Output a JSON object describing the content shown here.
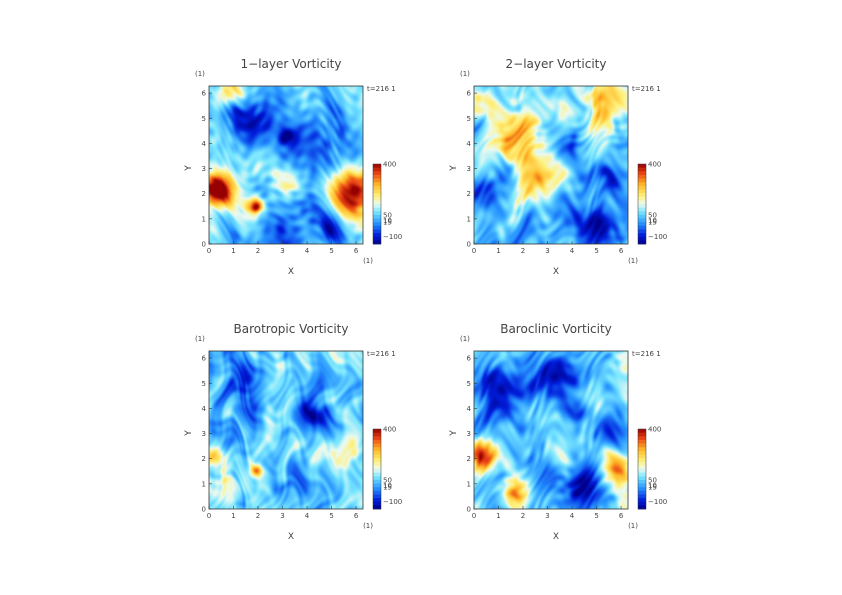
{
  "chart_data": [
    {
      "type": "heatmap",
      "title": "1−layer Vorticity",
      "xlabel": "X",
      "ylabel": "Y",
      "x_unit": "(1)",
      "y_unit": "(1)",
      "xticks": [
        "0",
        "1",
        "2",
        "3",
        "4",
        "5",
        "6"
      ],
      "yticks": [
        "0",
        "1",
        "2",
        "3",
        "4",
        "5",
        "6"
      ],
      "xlim": [
        0,
        6.283
      ],
      "ylim": [
        0,
        6.283
      ],
      "time_label": "t=216 1",
      "colorbar_labels": [
        "400",
        "50",
        "10",
        "15",
        "−100"
      ],
      "colorbar_range": [
        -150,
        400
      ],
      "features": [
        {
          "x": 0.3,
          "y": 2.1,
          "r": 0.7,
          "v": 300
        },
        {
          "x": 1.9,
          "y": 1.5,
          "r": 0.3,
          "v": 250
        },
        {
          "x": 5.8,
          "y": 2.0,
          "r": 0.9,
          "v": 250
        },
        {
          "x": 3.2,
          "y": 4.3,
          "r": 0.35,
          "v": -120
        },
        {
          "x": 1.5,
          "y": 5.1,
          "r": 1.0,
          "v": -100
        },
        {
          "x": 4.4,
          "y": 3.8,
          "r": 1.2,
          "v": -90
        },
        {
          "x": 2.8,
          "y": 0.5,
          "r": 0.9,
          "v": -100
        },
        {
          "x": 4.8,
          "y": 0.6,
          "r": 0.7,
          "v": -100
        },
        {
          "x": 0.8,
          "y": 6.0,
          "r": 0.6,
          "v": 150
        },
        {
          "x": 3.0,
          "y": 2.3,
          "r": 0.7,
          "v": 90
        }
      ]
    },
    {
      "type": "heatmap",
      "title": "2−layer Vorticity",
      "xlabel": "X",
      "ylabel": "Y",
      "x_unit": "(1)",
      "y_unit": "(1)",
      "xticks": [
        "0",
        "1",
        "2",
        "3",
        "4",
        "5",
        "6"
      ],
      "yticks": [
        "0",
        "1",
        "2",
        "3",
        "4",
        "5",
        "6"
      ],
      "xlim": [
        0,
        6.283
      ],
      "ylim": [
        0,
        6.283
      ],
      "time_label": "t=216 1",
      "colorbar_labels": [
        "400",
        "50",
        "10",
        "15",
        "−100"
      ],
      "colorbar_range": [
        -150,
        400
      ],
      "features": [
        {
          "x": 0.6,
          "y": 2.2,
          "r": 0.8,
          "v": -90
        },
        {
          "x": 4.0,
          "y": 4.0,
          "r": 0.7,
          "v": -110
        },
        {
          "x": 5.0,
          "y": 0.8,
          "r": 0.9,
          "v": -100
        },
        {
          "x": 1.5,
          "y": 4.5,
          "r": 1.1,
          "v": 110
        },
        {
          "x": 5.3,
          "y": 5.6,
          "r": 0.8,
          "v": 120
        },
        {
          "x": 2.5,
          "y": 2.6,
          "r": 0.8,
          "v": 120
        },
        {
          "x": 0.4,
          "y": 5.6,
          "r": 0.6,
          "v": 90
        },
        {
          "x": 5.6,
          "y": 2.8,
          "r": 0.8,
          "v": -60
        }
      ]
    },
    {
      "type": "heatmap",
      "title": "Barotropic Vorticity",
      "xlabel": "X",
      "ylabel": "Y",
      "x_unit": "(1)",
      "y_unit": "(1)",
      "xticks": [
        "0",
        "1",
        "2",
        "3",
        "4",
        "5",
        "6"
      ],
      "yticks": [
        "0",
        "1",
        "2",
        "3",
        "4",
        "5",
        "6"
      ],
      "xlim": [
        0,
        6.283
      ],
      "ylim": [
        0,
        6.283
      ],
      "time_label": "t=216 1",
      "colorbar_labels": [
        "400",
        "50",
        "10",
        "15",
        "−100"
      ],
      "colorbar_range": [
        -150,
        400
      ],
      "features": [
        {
          "x": 0.25,
          "y": 2.1,
          "r": 0.4,
          "v": 180
        },
        {
          "x": 1.9,
          "y": 1.5,
          "r": 0.25,
          "v": 150
        },
        {
          "x": 4.2,
          "y": 3.8,
          "r": 0.6,
          "v": -110
        },
        {
          "x": 1.4,
          "y": 4.8,
          "r": 1.0,
          "v": -60
        },
        {
          "x": 3.0,
          "y": 0.7,
          "r": 0.8,
          "v": -60
        },
        {
          "x": 5.5,
          "y": 2.4,
          "r": 0.8,
          "v": 70
        },
        {
          "x": 0.8,
          "y": 0.8,
          "r": 0.7,
          "v": 70
        }
      ]
    },
    {
      "type": "heatmap",
      "title": "Baroclinic Vorticity",
      "xlabel": "X",
      "ylabel": "Y",
      "x_unit": "(1)",
      "y_unit": "(1)",
      "xticks": [
        "0",
        "1",
        "2",
        "3",
        "4",
        "5",
        "6"
      ],
      "yticks": [
        "0",
        "1",
        "2",
        "3",
        "4",
        "5",
        "6"
      ],
      "xlim": [
        0,
        6.283
      ],
      "ylim": [
        0,
        6.283
      ],
      "time_label": "t=216 1",
      "colorbar_labels": [
        "400",
        "50",
        "10",
        "15",
        "−100"
      ],
      "colorbar_range": [
        -150,
        400
      ],
      "features": [
        {
          "x": 0.25,
          "y": 2.1,
          "r": 0.6,
          "v": 250
        },
        {
          "x": 1.8,
          "y": 0.6,
          "r": 0.6,
          "v": 160
        },
        {
          "x": 3.3,
          "y": 5.2,
          "r": 1.0,
          "v": -110
        },
        {
          "x": 1.2,
          "y": 4.8,
          "r": 1.0,
          "v": -90
        },
        {
          "x": 4.5,
          "y": 0.7,
          "r": 1.0,
          "v": -110
        },
        {
          "x": 5.3,
          "y": 3.2,
          "r": 0.8,
          "v": -80
        },
        {
          "x": 4.3,
          "y": 3.9,
          "r": 0.5,
          "v": -100
        },
        {
          "x": 5.8,
          "y": 1.6,
          "r": 0.7,
          "v": 150
        }
      ]
    }
  ]
}
